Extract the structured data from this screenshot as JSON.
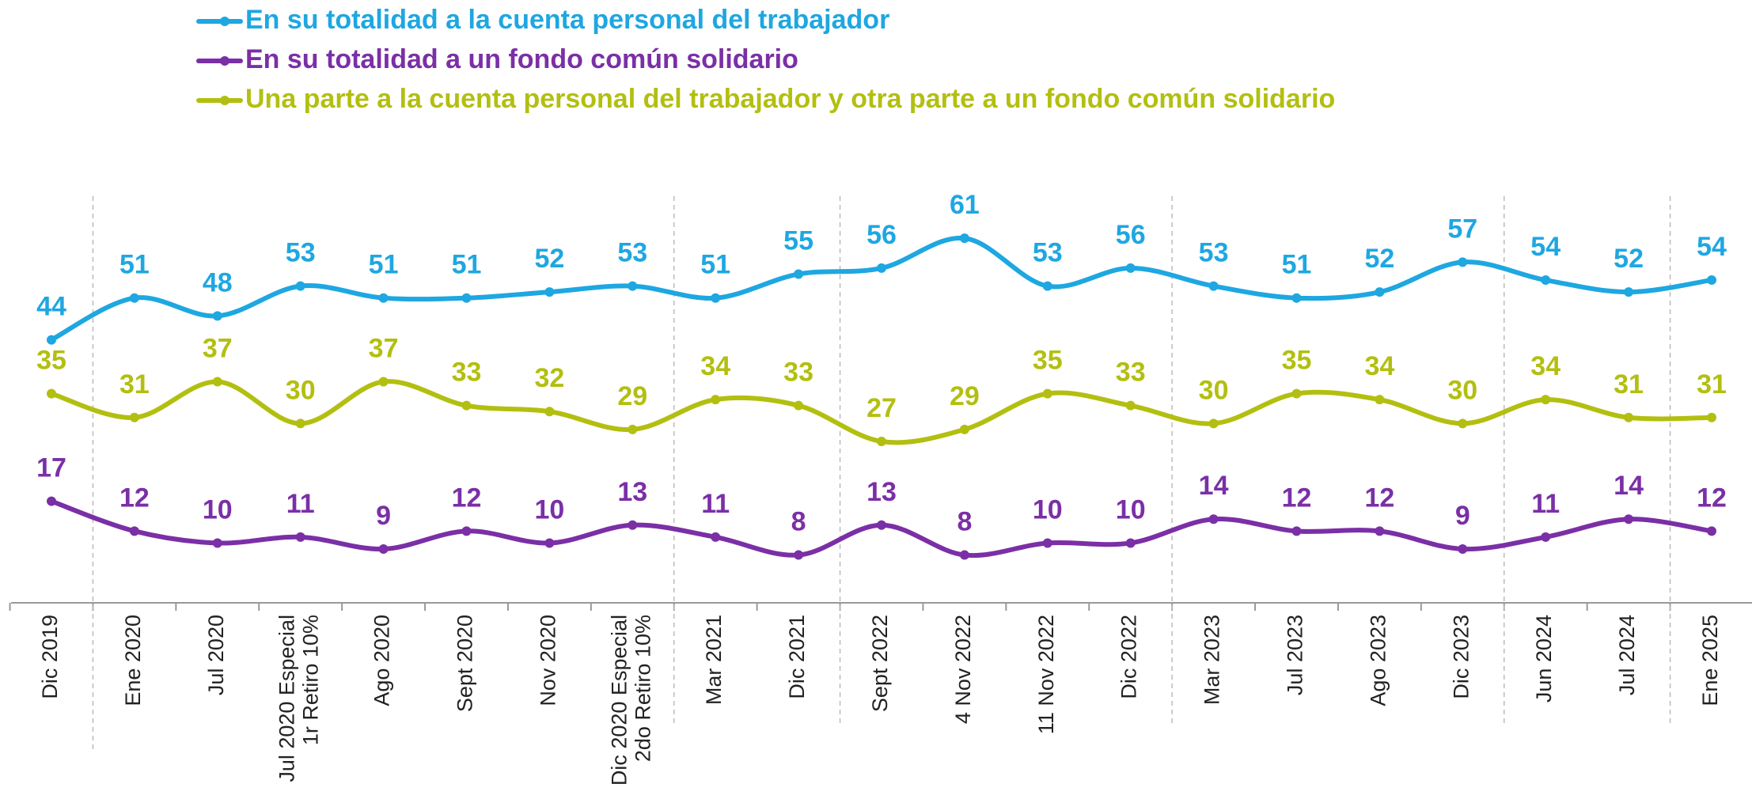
{
  "chart_data": {
    "type": "line",
    "categories": [
      "Dic 2019",
      "Ene 2020",
      "Jul 2020",
      "Jul 2020 Especial\n1r Retiro 10%",
      "Ago 2020",
      "Sept 2020",
      "Nov 2020",
      "Dic 2020 Especial\n2do Retiro 10%",
      "Mar 2021",
      "Dic 2021",
      "Sept 2022",
      "4 Nov 2022",
      "11 Nov 2022",
      "Dic 2022",
      "Mar 2023",
      "Jul 2023",
      "Ago 2023",
      "Dic 2023",
      "Jun 2024",
      "Jul 2024",
      "Ene 2025"
    ],
    "series": [
      {
        "name": "En su totalidad a la cuenta personal del trabajador",
        "color": "#1ea7e1",
        "values": [
          44,
          51,
          48,
          53,
          51,
          51,
          52,
          53,
          51,
          55,
          56,
          61,
          53,
          56,
          53,
          51,
          52,
          57,
          54,
          52,
          54
        ]
      },
      {
        "name": "En su totalidad a un fondo común solidario",
        "color": "#7b2fa6",
        "values": [
          17,
          12,
          10,
          11,
          9,
          12,
          10,
          13,
          11,
          8,
          13,
          8,
          10,
          10,
          14,
          12,
          12,
          9,
          11,
          14,
          12
        ]
      },
      {
        "name": "Una parte a la cuenta personal del trabajador y otra parte a un fondo común solidario",
        "color": "#b3bf10",
        "values": [
          35,
          31,
          37,
          30,
          37,
          33,
          32,
          29,
          34,
          33,
          27,
          29,
          35,
          33,
          30,
          35,
          34,
          30,
          34,
          31,
          31
        ]
      }
    ],
    "ylim": [
      0,
      70
    ]
  }
}
